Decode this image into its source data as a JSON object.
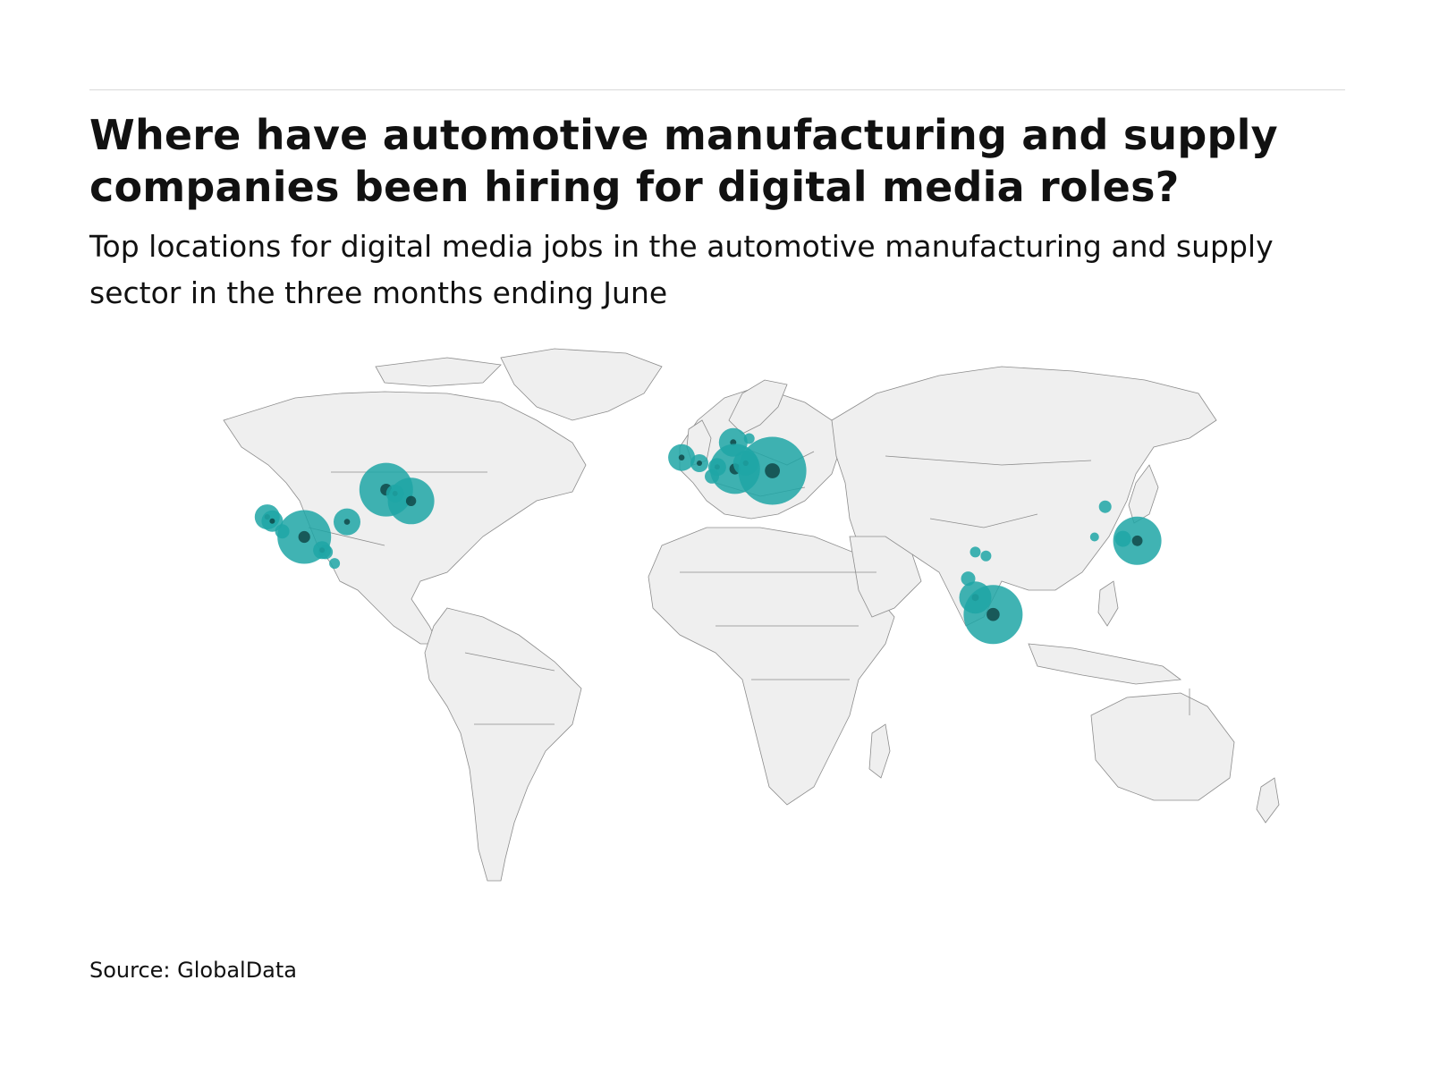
{
  "title": "Where have automotive manufacturing and supply companies been hiring for digital media roles?",
  "subtitle": "Top locations for digital media jobs in the automotive manufacturing and supply sector in the three months ending June",
  "source": "Source: GlobalData",
  "colors": {
    "bubble": "#1fa6a6",
    "bubble_overlap": "#0b3b3b",
    "land": "#efefef",
    "border": "#8c8c8c"
  },
  "chart_data": {
    "type": "scatter",
    "encoding": "proportional symbol map; bubble size is relative hiring volume",
    "series": [
      {
        "values": [
          {
            "lon": -122.4,
            "lat": 37.8,
            "size": 14
          },
          {
            "lon": -121.0,
            "lat": 36.7,
            "size": 12
          },
          {
            "lon": -118.2,
            "lat": 34.0,
            "size": 8
          },
          {
            "lon": -112.0,
            "lat": 32.5,
            "size": 30
          },
          {
            "lon": -107.0,
            "lat": 29.0,
            "size": 10
          },
          {
            "lon": -106.0,
            "lat": 28.5,
            "size": 8
          },
          {
            "lon": -103.5,
            "lat": 25.5,
            "size": 6
          },
          {
            "lon": -100.0,
            "lat": 36.5,
            "size": 15
          },
          {
            "lon": -89.0,
            "lat": 45.0,
            "size": 30
          },
          {
            "lon": -86.5,
            "lat": 44.0,
            "size": 10
          },
          {
            "lon": -82.0,
            "lat": 42.0,
            "size": 26
          },
          {
            "lon": -6.0,
            "lat": 53.5,
            "size": 15
          },
          {
            "lon": -1.0,
            "lat": 52.0,
            "size": 10
          },
          {
            "lon": 4.0,
            "lat": 51.0,
            "size": 10
          },
          {
            "lon": 8.5,
            "lat": 57.5,
            "size": 16
          },
          {
            "lon": 13.0,
            "lat": 58.5,
            "size": 6
          },
          {
            "lon": 9.0,
            "lat": 50.5,
            "size": 28
          },
          {
            "lon": 12.0,
            "lat": 52.0,
            "size": 14
          },
          {
            "lon": 19.5,
            "lat": 50.0,
            "size": 38
          },
          {
            "lon": 2.5,
            "lat": 48.5,
            "size": 8
          },
          {
            "lon": 76.5,
            "lat": 28.5,
            "size": 6
          },
          {
            "lon": 79.5,
            "lat": 27.5,
            "size": 6
          },
          {
            "lon": 74.5,
            "lat": 21.5,
            "size": 8
          },
          {
            "lon": 76.5,
            "lat": 16.5,
            "size": 18
          },
          {
            "lon": 81.5,
            "lat": 12.0,
            "size": 33
          },
          {
            "lon": 113.0,
            "lat": 40.5,
            "size": 7
          },
          {
            "lon": 110.0,
            "lat": 32.5,
            "size": 5
          },
          {
            "lon": 118.0,
            "lat": 32.0,
            "size": 9
          },
          {
            "lon": 122.0,
            "lat": 31.5,
            "size": 27
          }
        ]
      }
    ]
  }
}
